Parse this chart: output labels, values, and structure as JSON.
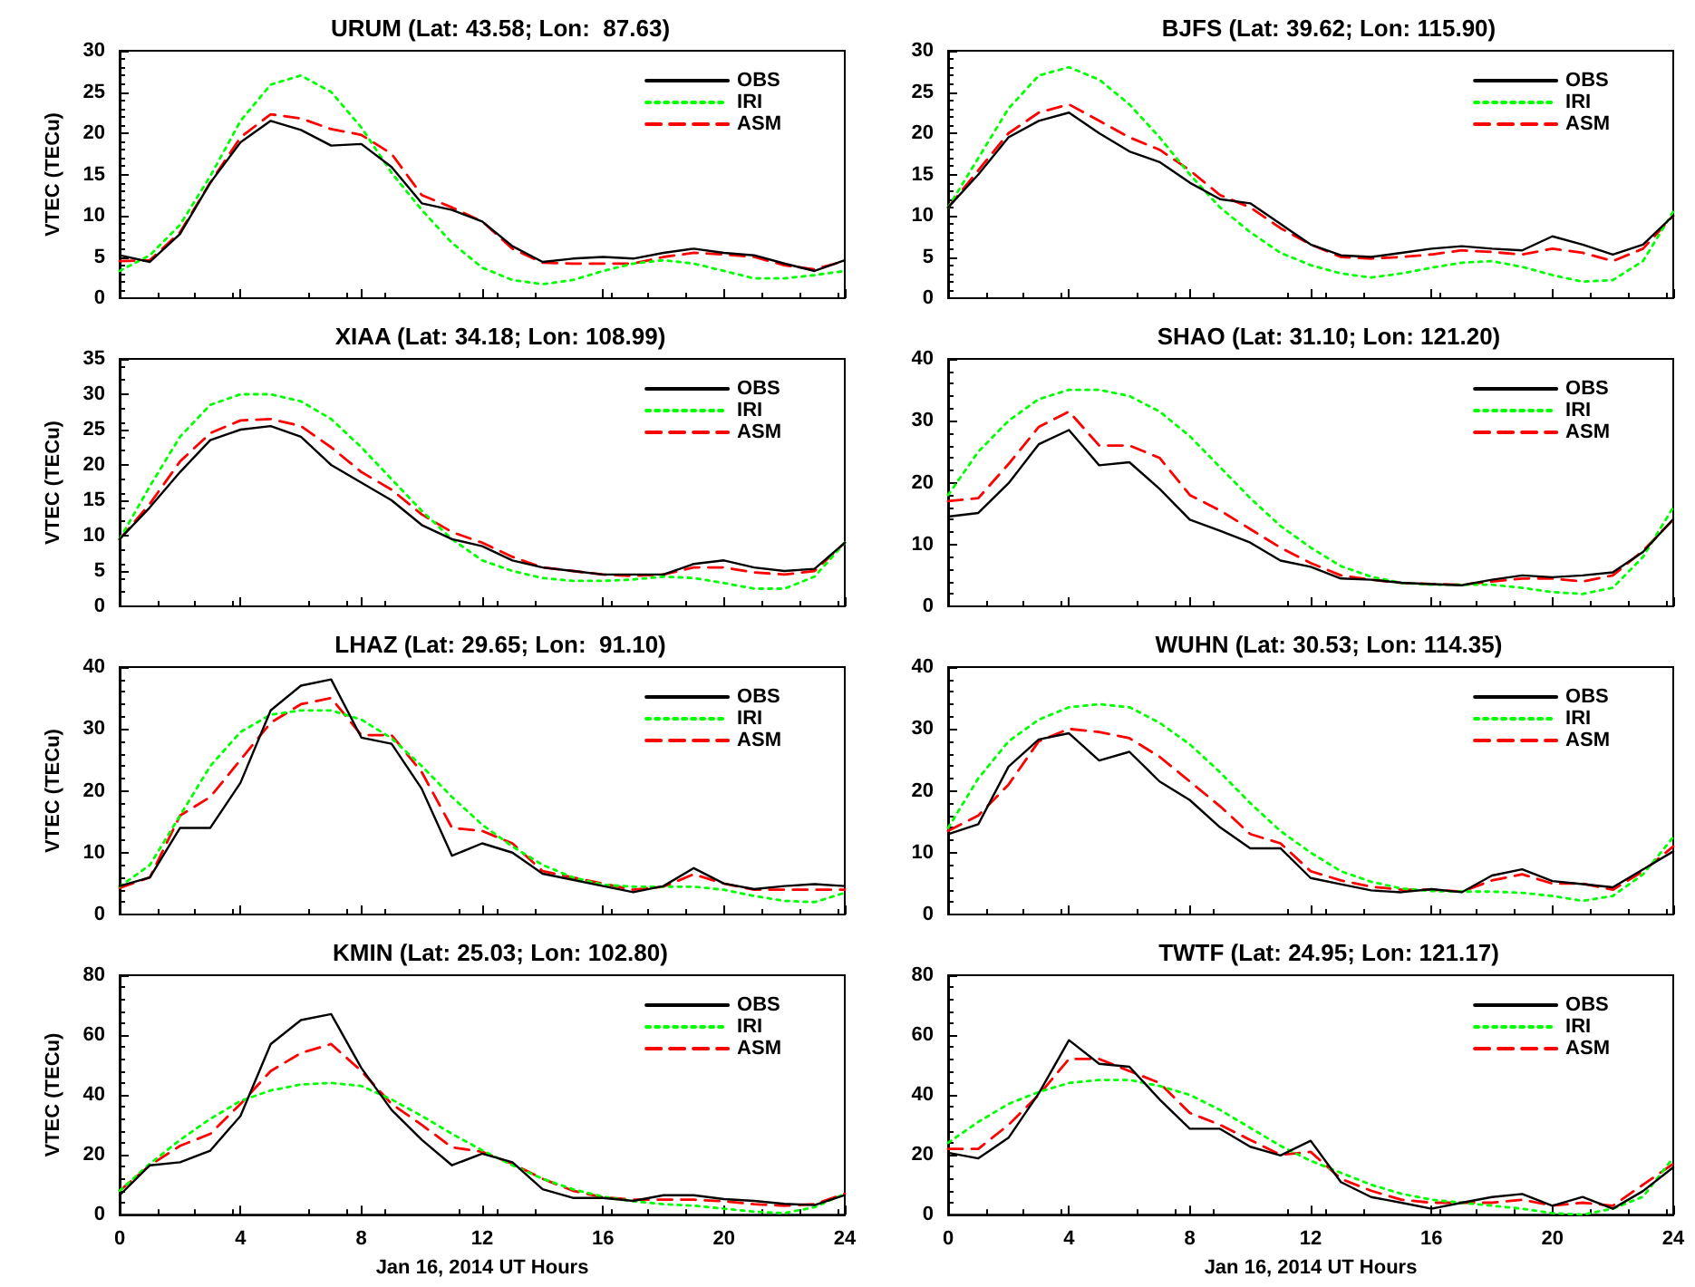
{
  "chart_data": [
    {
      "type": "line",
      "title": "URUM (Lat: 43.58; Lon:  87.63)",
      "ylabel": "VTEC (TECu)",
      "x": [
        0,
        1,
        2,
        3,
        4,
        5,
        6,
        7,
        8,
        9,
        10,
        11,
        12,
        13,
        14,
        15,
        16,
        17,
        18,
        19,
        20,
        21,
        22,
        23,
        24
      ],
      "xlim": [
        0,
        24
      ],
      "xticks": [
        0,
        4,
        8,
        12,
        16,
        20,
        24
      ],
      "ylim": [
        0,
        30
      ],
      "yticks": [
        0,
        5,
        10,
        15,
        20,
        25,
        30
      ],
      "legend": "top right",
      "tick_labels": "y",
      "series": [
        {
          "name": "OBS",
          "color": "#000000",
          "line_style": "solid",
          "values": [
            5.2,
            4.4,
            7.8,
            14,
            18.9,
            21.5,
            20.4,
            18.5,
            18.7,
            15.9,
            11.5,
            10.7,
            9.3,
            6.3,
            4.4,
            4.8,
            5,
            4.8,
            5.5,
            6,
            5.5,
            5.2,
            4.2,
            3.3,
            4.6
          ]
        },
        {
          "name": "IRI",
          "color": "#00ff00",
          "line_style": "dotted",
          "values": [
            3.3,
            5.2,
            8.9,
            14.8,
            21.5,
            25.9,
            27,
            25,
            20.7,
            15.2,
            10.7,
            6.7,
            3.7,
            2.2,
            1.7,
            2.2,
            3.3,
            4.2,
            4.6,
            4.2,
            3.3,
            2.4,
            2.4,
            2.8,
            3.3
          ]
        },
        {
          "name": "ASM",
          "color": "#ff0000",
          "line_style": "dashed",
          "values": [
            4.5,
            4.6,
            8,
            14,
            19.5,
            22.3,
            21.8,
            20.5,
            19.8,
            17.5,
            12.5,
            11,
            9.3,
            6,
            4.3,
            4.2,
            4.2,
            4.2,
            5,
            5.5,
            5.3,
            5,
            4,
            3.5,
            4.5
          ]
        }
      ]
    },
    {
      "type": "line",
      "title": "BJFS (Lat: 39.62; Lon: 115.90)",
      "x": [
        0,
        1,
        2,
        3,
        4,
        5,
        6,
        7,
        8,
        9,
        10,
        11,
        12,
        13,
        14,
        15,
        16,
        17,
        18,
        19,
        20,
        21,
        22,
        23,
        24
      ],
      "xlim": [
        0,
        24
      ],
      "xticks": [
        0,
        4,
        8,
        12,
        16,
        20,
        24
      ],
      "ylim": [
        0,
        30
      ],
      "yticks": [
        0,
        5,
        10,
        15,
        20,
        25,
        30
      ],
      "legend": "top right",
      "tick_labels": "y",
      "series": [
        {
          "name": "OBS",
          "color": "#000000",
          "line_style": "solid",
          "values": [
            11,
            15,
            19.5,
            21.5,
            22.5,
            20,
            17.8,
            16.5,
            14,
            12,
            11.5,
            9,
            6.5,
            5.2,
            5,
            5.5,
            6,
            6.3,
            6,
            5.8,
            7.5,
            6.5,
            5.3,
            6.5,
            10
          ]
        },
        {
          "name": "IRI",
          "color": "#00ff00",
          "line_style": "dotted",
          "values": [
            11,
            17,
            23,
            27,
            28,
            26.5,
            23.5,
            19.5,
            15,
            11,
            8,
            5.5,
            4,
            3,
            2.5,
            3,
            3.7,
            4.3,
            4.5,
            3.8,
            2.8,
            2,
            2.2,
            4.5,
            10.5
          ]
        },
        {
          "name": "ASM",
          "color": "#ff0000",
          "line_style": "dashed",
          "values": [
            11,
            15.5,
            20,
            22.5,
            23.5,
            21.5,
            19.5,
            18,
            15.5,
            12.5,
            11,
            8.5,
            6.5,
            5,
            4.8,
            5,
            5.3,
            5.8,
            5.6,
            5.3,
            6,
            5.5,
            4.5,
            6,
            10
          ]
        }
      ]
    },
    {
      "type": "line",
      "title": "XIAA (Lat: 34.18; Lon: 108.99)",
      "ylabel": "VTEC (TECu)",
      "x": [
        0,
        1,
        2,
        3,
        4,
        5,
        6,
        7,
        8,
        9,
        10,
        11,
        12,
        13,
        14,
        15,
        16,
        17,
        18,
        19,
        20,
        21,
        22,
        23,
        24
      ],
      "xlim": [
        0,
        24
      ],
      "xticks": [
        0,
        4,
        8,
        12,
        16,
        20,
        24
      ],
      "ylim": [
        0,
        35
      ],
      "yticks": [
        0,
        5,
        10,
        15,
        20,
        25,
        30,
        35
      ],
      "legend": "top right",
      "tick_labels": "y",
      "series": [
        {
          "name": "OBS",
          "color": "#000000",
          "line_style": "solid",
          "values": [
            9.5,
            14,
            19,
            23.5,
            25,
            25.5,
            24,
            20,
            17.5,
            15,
            11.5,
            9.5,
            8.5,
            6.5,
            5.5,
            5,
            4.5,
            4.5,
            4.5,
            6,
            6.5,
            5.5,
            5,
            5.3,
            9
          ]
        },
        {
          "name": "IRI",
          "color": "#00ff00",
          "line_style": "dotted",
          "values": [
            9.5,
            17,
            24,
            28.5,
            30,
            30,
            29,
            26.5,
            22.5,
            18,
            13.5,
            9.5,
            6.5,
            5,
            4,
            3.6,
            3.6,
            3.8,
            4.2,
            4,
            3.3,
            2.5,
            2.5,
            4.2,
            9
          ]
        },
        {
          "name": "ASM",
          "color": "#ff0000",
          "line_style": "dashed",
          "values": [
            9.5,
            14.5,
            20.5,
            24.5,
            26.3,
            26.5,
            25.5,
            22.5,
            19,
            16.5,
            13,
            10.5,
            9,
            7,
            5.5,
            5,
            4.5,
            4.3,
            4.5,
            5.5,
            5.5,
            4.8,
            4.5,
            5,
            9
          ]
        }
      ]
    },
    {
      "type": "line",
      "title": "SHAO (Lat: 31.10; Lon: 121.20)",
      "x": [
        0,
        1,
        2,
        3,
        4,
        5,
        6,
        7,
        8,
        9,
        10,
        11,
        12,
        13,
        14,
        15,
        16,
        17,
        18,
        19,
        20,
        21,
        22,
        23,
        24
      ],
      "xlim": [
        0,
        24
      ],
      "xticks": [
        0,
        4,
        8,
        12,
        16,
        20,
        24
      ],
      "ylim": [
        0,
        40
      ],
      "yticks": [
        0,
        10,
        20,
        30,
        40
      ],
      "legend": "top right",
      "tick_labels": "y",
      "series": [
        {
          "name": "OBS",
          "color": "#000000",
          "line_style": "solid",
          "values": [
            14.5,
            15.1,
            19.9,
            26.2,
            28.5,
            22.8,
            23.3,
            19,
            14,
            12.2,
            10.3,
            7.4,
            6.4,
            4.5,
            4.3,
            3.8,
            3.6,
            3.4,
            4.3,
            5,
            4.7,
            5,
            5.5,
            8.8,
            14.1
          ]
        },
        {
          "name": "IRI",
          "color": "#00ff00",
          "line_style": "dotted",
          "values": [
            18,
            25,
            30,
            33.5,
            35,
            35,
            34,
            31.5,
            27.5,
            22.5,
            17.5,
            13,
            9.5,
            6.5,
            4.8,
            3.8,
            3.5,
            3.5,
            3.5,
            3,
            2.3,
            2,
            3,
            8,
            16
          ]
        },
        {
          "name": "ASM",
          "color": "#ff0000",
          "line_style": "dashed",
          "values": [
            17,
            17.5,
            23,
            29,
            31.5,
            26,
            26,
            24,
            18,
            15.5,
            12.5,
            9.5,
            7,
            5,
            4.3,
            3.8,
            3.6,
            3.5,
            4,
            4.5,
            4.5,
            4,
            5,
            9,
            14
          ]
        }
      ]
    },
    {
      "type": "line",
      "title": "LHAZ (Lat: 29.65; Lon:  91.10)",
      "ylabel": "VTEC (TECu)",
      "x": [
        0,
        1,
        2,
        3,
        4,
        5,
        6,
        7,
        8,
        9,
        10,
        11,
        12,
        13,
        14,
        15,
        16,
        17,
        18,
        19,
        20,
        21,
        22,
        23,
        24
      ],
      "xlim": [
        0,
        24
      ],
      "xticks": [
        0,
        4,
        8,
        12,
        16,
        20,
        24
      ],
      "ylim": [
        0,
        40
      ],
      "yticks": [
        0,
        10,
        20,
        30,
        40
      ],
      "legend": "top right",
      "tick_labels": "y",
      "series": [
        {
          "name": "OBS",
          "color": "#000000",
          "line_style": "solid",
          "values": [
            4.6,
            6,
            14,
            14,
            21.3,
            33,
            37,
            38,
            28.6,
            27.6,
            20.3,
            9.5,
            11.5,
            10,
            6.6,
            5.6,
            4.6,
            3.6,
            4.6,
            7.5,
            5,
            4.1,
            4.6,
            4.9,
            4.6
          ]
        },
        {
          "name": "IRI",
          "color": "#00ff00",
          "line_style": "dotted",
          "values": [
            4.5,
            8,
            16,
            24,
            29.5,
            32.3,
            33,
            33,
            31.5,
            28.5,
            24,
            19,
            14.5,
            11,
            8,
            6,
            4.8,
            4.5,
            4.5,
            4.5,
            4,
            3,
            2.2,
            2,
            3.5
          ]
        },
        {
          "name": "ASM",
          "color": "#ff0000",
          "line_style": "dashed",
          "values": [
            4.3,
            6,
            16,
            19,
            25,
            31,
            34,
            35,
            29,
            29,
            23,
            14,
            13.5,
            11.5,
            7,
            6,
            5,
            4,
            4.5,
            6.5,
            5,
            4,
            4,
            4,
            4
          ]
        }
      ]
    },
    {
      "type": "line",
      "title": "WUHN (Lat: 30.53; Lon: 114.35)",
      "x": [
        0,
        1,
        2,
        3,
        4,
        5,
        6,
        7,
        8,
        9,
        10,
        11,
        12,
        13,
        14,
        15,
        16,
        17,
        18,
        19,
        20,
        21,
        22,
        23,
        24
      ],
      "xlim": [
        0,
        24
      ],
      "xticks": [
        0,
        4,
        8,
        12,
        16,
        20,
        24
      ],
      "ylim": [
        0,
        40
      ],
      "yticks": [
        0,
        10,
        20,
        30,
        40
      ],
      "legend": "top right",
      "tick_labels": "y",
      "series": [
        {
          "name": "OBS",
          "color": "#000000",
          "line_style": "solid",
          "values": [
            13,
            14.6,
            23.9,
            28.3,
            29.3,
            24.9,
            26.3,
            21.5,
            18.5,
            14.1,
            10.7,
            10.7,
            5.9,
            4.9,
            3.9,
            3.6,
            4.1,
            3.6,
            6.3,
            7.3,
            5.4,
            4.9,
            4.4,
            7.3,
            10.2
          ]
        },
        {
          "name": "IRI",
          "color": "#00ff00",
          "line_style": "dotted",
          "values": [
            14,
            22,
            28,
            31.5,
            33.5,
            34,
            33.5,
            31,
            27.5,
            23,
            18,
            13.5,
            10,
            7,
            5.3,
            4.2,
            3.8,
            3.7,
            3.7,
            3.5,
            3,
            2.2,
            3,
            6.5,
            12.5
          ]
        },
        {
          "name": "ASM",
          "color": "#ff0000",
          "line_style": "dashed",
          "values": [
            13.5,
            16,
            21,
            28,
            30,
            29.5,
            28.5,
            25.5,
            21.5,
            17.5,
            13,
            11.5,
            7,
            5.5,
            4.5,
            4,
            4,
            3.7,
            5.5,
            6.5,
            5,
            5,
            4,
            7,
            11
          ]
        }
      ]
    },
    {
      "type": "line",
      "title": "KMIN (Lat: 25.03; Lon: 102.80)",
      "ylabel": "VTEC (TECu)",
      "xlabel": "Jan 16, 2014 UT Hours",
      "x": [
        0,
        1,
        2,
        3,
        4,
        5,
        6,
        7,
        8,
        9,
        10,
        11,
        12,
        13,
        14,
        15,
        16,
        17,
        18,
        19,
        20,
        21,
        22,
        23,
        24
      ],
      "xlim": [
        0,
        24
      ],
      "xticks": [
        0,
        4,
        8,
        12,
        16,
        20,
        24
      ],
      "ylim": [
        0,
        80
      ],
      "yticks": [
        0,
        20,
        40,
        60,
        80
      ],
      "legend": "top right",
      "series": [
        {
          "name": "OBS",
          "color": "#000000",
          "line_style": "solid",
          "values": [
            6.5,
            16.5,
            17.5,
            21.4,
            33,
            57,
            65,
            67,
            49,
            35,
            25,
            16.5,
            20.4,
            17.5,
            8.5,
            5.6,
            5.6,
            4.6,
            6.5,
            6.5,
            5.2,
            4.6,
            3.6,
            3.2,
            6.5
          ]
        },
        {
          "name": "IRI",
          "color": "#00ff00",
          "line_style": "dotted",
          "values": [
            8,
            17,
            25,
            32,
            38,
            41.5,
            43.5,
            44,
            43,
            38.5,
            33,
            27,
            21.5,
            16.5,
            12,
            8.5,
            6,
            4.5,
            3.5,
            3,
            2,
            1,
            0.5,
            2.5,
            7
          ]
        },
        {
          "name": "ASM",
          "color": "#ff0000",
          "line_style": "dashed",
          "values": [
            8,
            16.5,
            23,
            27,
            37,
            48,
            54,
            57,
            48,
            37,
            30,
            22.5,
            21,
            17,
            12,
            8,
            5.8,
            5,
            5,
            5,
            4.5,
            3.5,
            3,
            3.5,
            7
          ]
        }
      ]
    },
    {
      "type": "line",
      "title": "TWTF (Lat: 24.95; Lon: 121.17)",
      "xlabel": "Jan 16, 2014 UT Hours",
      "x": [
        0,
        1,
        2,
        3,
        4,
        5,
        6,
        7,
        8,
        9,
        10,
        11,
        12,
        13,
        14,
        15,
        16,
        17,
        18,
        19,
        20,
        21,
        22,
        23,
        24
      ],
      "xlim": [
        0,
        24
      ],
      "xticks": [
        0,
        4,
        8,
        12,
        16,
        20,
        24
      ],
      "ylim": [
        0,
        80
      ],
      "yticks": [
        0,
        20,
        40,
        60,
        80
      ],
      "legend": "top right",
      "series": [
        {
          "name": "OBS",
          "color": "#000000",
          "line_style": "solid",
          "values": [
            20.7,
            18.8,
            25.7,
            40.5,
            58.3,
            50.4,
            49.4,
            38.5,
            28.7,
            28.7,
            22.7,
            19.8,
            24.7,
            10.9,
            5.9,
            4,
            2,
            4,
            5.9,
            6.9,
            3,
            5.9,
            2,
            7.9,
            15.8
          ]
        },
        {
          "name": "IRI",
          "color": "#00ff00",
          "line_style": "dotted",
          "values": [
            24,
            31,
            37,
            41,
            44,
            45,
            45,
            43,
            40,
            35,
            29,
            23,
            18,
            14,
            10,
            7,
            5,
            4,
            3,
            2,
            0.5,
            0,
            2,
            6,
            19
          ]
        },
        {
          "name": "ASM",
          "color": "#ff0000",
          "line_style": "dashed",
          "values": [
            22,
            22,
            30,
            40,
            52,
            52,
            48,
            44,
            34,
            30,
            25,
            20,
            21,
            12,
            8,
            5,
            4,
            4,
            4,
            5,
            3,
            4,
            3,
            10,
            17
          ]
        }
      ]
    }
  ]
}
